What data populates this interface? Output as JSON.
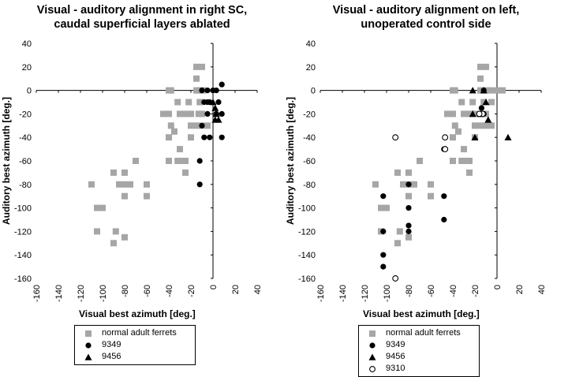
{
  "chart_data": [
    {
      "type": "scatter",
      "title_line1": "Visual - auditory alignment in right SC,",
      "title_line2": "caudal superficial layers ablated",
      "xlabel": "Visual best azimuth [deg.]",
      "ylabel": "Auditory best azimuth [deg.]",
      "xlim": [
        -160,
        40
      ],
      "ylim": [
        -160,
        40
      ],
      "xticks": [
        -160,
        -140,
        -120,
        -100,
        -80,
        -60,
        -40,
        -20,
        0,
        20,
        40
      ],
      "yticks": [
        40,
        20,
        0,
        -20,
        -40,
        -60,
        -80,
        -100,
        -120,
        -140,
        -160
      ],
      "grid": false,
      "legend_position": "bottom",
      "series": [
        {
          "name": "normal adult ferrets",
          "marker": "square",
          "color": "#a6a6a6",
          "points": [
            [
              -110,
              -80
            ],
            [
              -105,
              -100
            ],
            [
              -100,
              -100
            ],
            [
              -105,
              -120
            ],
            [
              -90,
              -70
            ],
            [
              -80,
              -70
            ],
            [
              -85,
              -80
            ],
            [
              -80,
              -80
            ],
            [
              -75,
              -80
            ],
            [
              -80,
              -90
            ],
            [
              -90,
              -130
            ],
            [
              -88,
              -120
            ],
            [
              -80,
              -125
            ],
            [
              -70,
              -60
            ],
            [
              -60,
              -80
            ],
            [
              -60,
              -90
            ],
            [
              -45,
              -20
            ],
            [
              -40,
              0
            ],
            [
              -38,
              0
            ],
            [
              -40,
              -20
            ],
            [
              -38,
              -30
            ],
            [
              -40,
              -40
            ],
            [
              -35,
              -35
            ],
            [
              -32,
              -10
            ],
            [
              -30,
              -20
            ],
            [
              -30,
              -50
            ],
            [
              -32,
              -60
            ],
            [
              -40,
              -60
            ],
            [
              -30,
              -60
            ],
            [
              -25,
              -70
            ],
            [
              -25,
              -60
            ],
            [
              -25,
              -20
            ],
            [
              -22,
              -10
            ],
            [
              -20,
              -40
            ],
            [
              -20,
              -30
            ],
            [
              -20,
              -20
            ],
            [
              -15,
              0
            ],
            [
              -13,
              0
            ],
            [
              -11,
              0
            ],
            [
              -9,
              0
            ],
            [
              -15,
              20
            ],
            [
              -10,
              20
            ],
            [
              -15,
              10
            ],
            [
              -12,
              -10
            ],
            [
              -10,
              -20
            ],
            [
              -13,
              -20
            ],
            [
              -10,
              -30
            ],
            [
              -15,
              -30
            ],
            [
              -5,
              -30
            ]
          ]
        },
        {
          "name": "9349",
          "marker": "filled-circle",
          "color": "#000000",
          "points": [
            [
              -10,
              0
            ],
            [
              -5,
              0
            ],
            [
              0,
              0
            ],
            [
              3,
              0
            ],
            [
              8,
              5
            ],
            [
              -8,
              -10
            ],
            [
              -5,
              -10
            ],
            [
              -3,
              -10
            ],
            [
              5,
              -10
            ],
            [
              -5,
              -20
            ],
            [
              3,
              -20
            ],
            [
              8,
              -20
            ],
            [
              -10,
              -30
            ],
            [
              -8,
              -40
            ],
            [
              -3,
              -40
            ],
            [
              8,
              -40
            ],
            [
              -12,
              -60
            ],
            [
              -12,
              -80
            ]
          ]
        },
        {
          "name": "9456",
          "marker": "filled-triangle",
          "color": "#000000",
          "points": [
            [
              0,
              -10
            ],
            [
              2,
              -15
            ],
            [
              3,
              -20
            ],
            [
              5,
              -25
            ],
            [
              2,
              -25
            ]
          ]
        }
      ]
    },
    {
      "type": "scatter",
      "title_line1": "Visual - auditory alignment on left,",
      "title_line2": "unoperated control side",
      "xlabel": "Visual best azimuth [deg.]",
      "ylabel": "Auditory best azimuth [deg.]",
      "xlim": [
        -160,
        40
      ],
      "ylim": [
        -160,
        40
      ],
      "xticks": [
        -160,
        -140,
        -120,
        -100,
        -80,
        -60,
        -40,
        -20,
        0,
        20,
        40
      ],
      "yticks": [
        40,
        20,
        0,
        -20,
        -40,
        -60,
        -80,
        -100,
        -120,
        -140,
        -160
      ],
      "grid": false,
      "legend_position": "bottom",
      "series": [
        {
          "name": "normal adult ferrets",
          "marker": "square",
          "color": "#a6a6a6",
          "points": [
            [
              -110,
              -80
            ],
            [
              -105,
              -100
            ],
            [
              -100,
              -100
            ],
            [
              -105,
              -120
            ],
            [
              -90,
              -70
            ],
            [
              -80,
              -70
            ],
            [
              -85,
              -80
            ],
            [
              -80,
              -80
            ],
            [
              -75,
              -80
            ],
            [
              -80,
              -90
            ],
            [
              -90,
              -130
            ],
            [
              -88,
              -120
            ],
            [
              -80,
              -125
            ],
            [
              -70,
              -60
            ],
            [
              -60,
              -80
            ],
            [
              -60,
              -90
            ],
            [
              -45,
              -20
            ],
            [
              -40,
              0
            ],
            [
              -38,
              0
            ],
            [
              -40,
              -20
            ],
            [
              -38,
              -30
            ],
            [
              -40,
              -40
            ],
            [
              -35,
              -35
            ],
            [
              -32,
              -10
            ],
            [
              -30,
              -20
            ],
            [
              -30,
              -50
            ],
            [
              -32,
              -60
            ],
            [
              -40,
              -60
            ],
            [
              -30,
              -60
            ],
            [
              -25,
              -70
            ],
            [
              -25,
              -60
            ],
            [
              -25,
              -20
            ],
            [
              -22,
              -10
            ],
            [
              -20,
              -40
            ],
            [
              -20,
              -30
            ],
            [
              -20,
              -20
            ],
            [
              -15,
              0
            ],
            [
              -13,
              0
            ],
            [
              -11,
              0
            ],
            [
              -9,
              0
            ],
            [
              -15,
              20
            ],
            [
              -10,
              20
            ],
            [
              -15,
              10
            ],
            [
              -12,
              -10
            ],
            [
              -10,
              -20
            ],
            [
              -13,
              -20
            ],
            [
              -10,
              -30
            ],
            [
              -15,
              -30
            ],
            [
              -5,
              -30
            ],
            [
              -5,
              0
            ],
            [
              0,
              0
            ],
            [
              5,
              0
            ],
            [
              -5,
              -10
            ]
          ]
        },
        {
          "name": "9349",
          "marker": "filled-circle",
          "color": "#000000",
          "points": [
            [
              -103,
              -90
            ],
            [
              -103,
              -120
            ],
            [
              -103,
              -140
            ],
            [
              -103,
              -150
            ],
            [
              -80,
              -80
            ],
            [
              -80,
              -100
            ],
            [
              -80,
              -115
            ],
            [
              -80,
              -120
            ],
            [
              -48,
              -50
            ],
            [
              -48,
              -90
            ],
            [
              -48,
              -110
            ],
            [
              -12,
              0
            ],
            [
              -14,
              -15
            ],
            [
              -12,
              -20
            ]
          ]
        },
        {
          "name": "9456",
          "marker": "filled-triangle",
          "color": "#000000",
          "points": [
            [
              -22,
              0
            ],
            [
              -12,
              0
            ],
            [
              -10,
              -10
            ],
            [
              -15,
              -20
            ],
            [
              -22,
              -20
            ],
            [
              -8,
              -25
            ],
            [
              -20,
              -40
            ],
            [
              10,
              -40
            ]
          ]
        },
        {
          "name": "9310",
          "marker": "open-circle",
          "color": "#000000",
          "points": [
            [
              -92,
              -40
            ],
            [
              -92,
              -160
            ],
            [
              -47,
              -40
            ],
            [
              -47,
              -50
            ],
            [
              -13,
              -20
            ],
            [
              -16,
              -20
            ]
          ]
        }
      ]
    }
  ]
}
